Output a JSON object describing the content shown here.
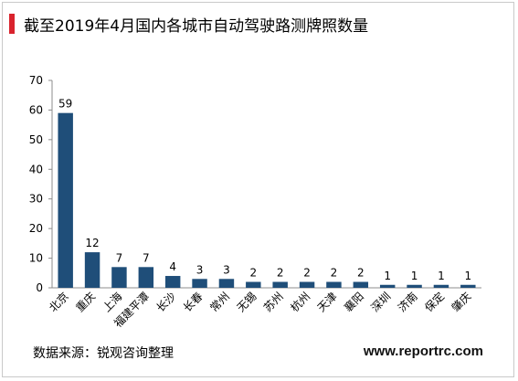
{
  "title": "截至2019年4月国内各城市自动驾驶路测牌照数量",
  "source": "数据来源：锐观咨询整理",
  "watermark": "www.reportrc.com",
  "colors": {
    "bar": "#1f4e79",
    "accent": "#d9232d"
  },
  "chart_data": {
    "type": "bar",
    "title": "截至2019年4月国内各城市自动驾驶路测牌照数量",
    "xlabel": "",
    "ylabel": "",
    "ylim": [
      0,
      70
    ],
    "yticks": [
      0,
      10,
      20,
      30,
      40,
      50,
      60,
      70
    ],
    "grid": false,
    "legend": "none",
    "categories": [
      "北京",
      "重庆",
      "上海",
      "福建平潭",
      "长沙",
      "长春",
      "常州",
      "无锡",
      "苏州",
      "杭州",
      "天津",
      "襄阳",
      "深圳",
      "济南",
      "保定",
      "肇庆"
    ],
    "values": [
      59,
      12,
      7,
      7,
      4,
      3,
      3,
      2,
      2,
      2,
      2,
      2,
      1,
      1,
      1,
      1
    ]
  }
}
